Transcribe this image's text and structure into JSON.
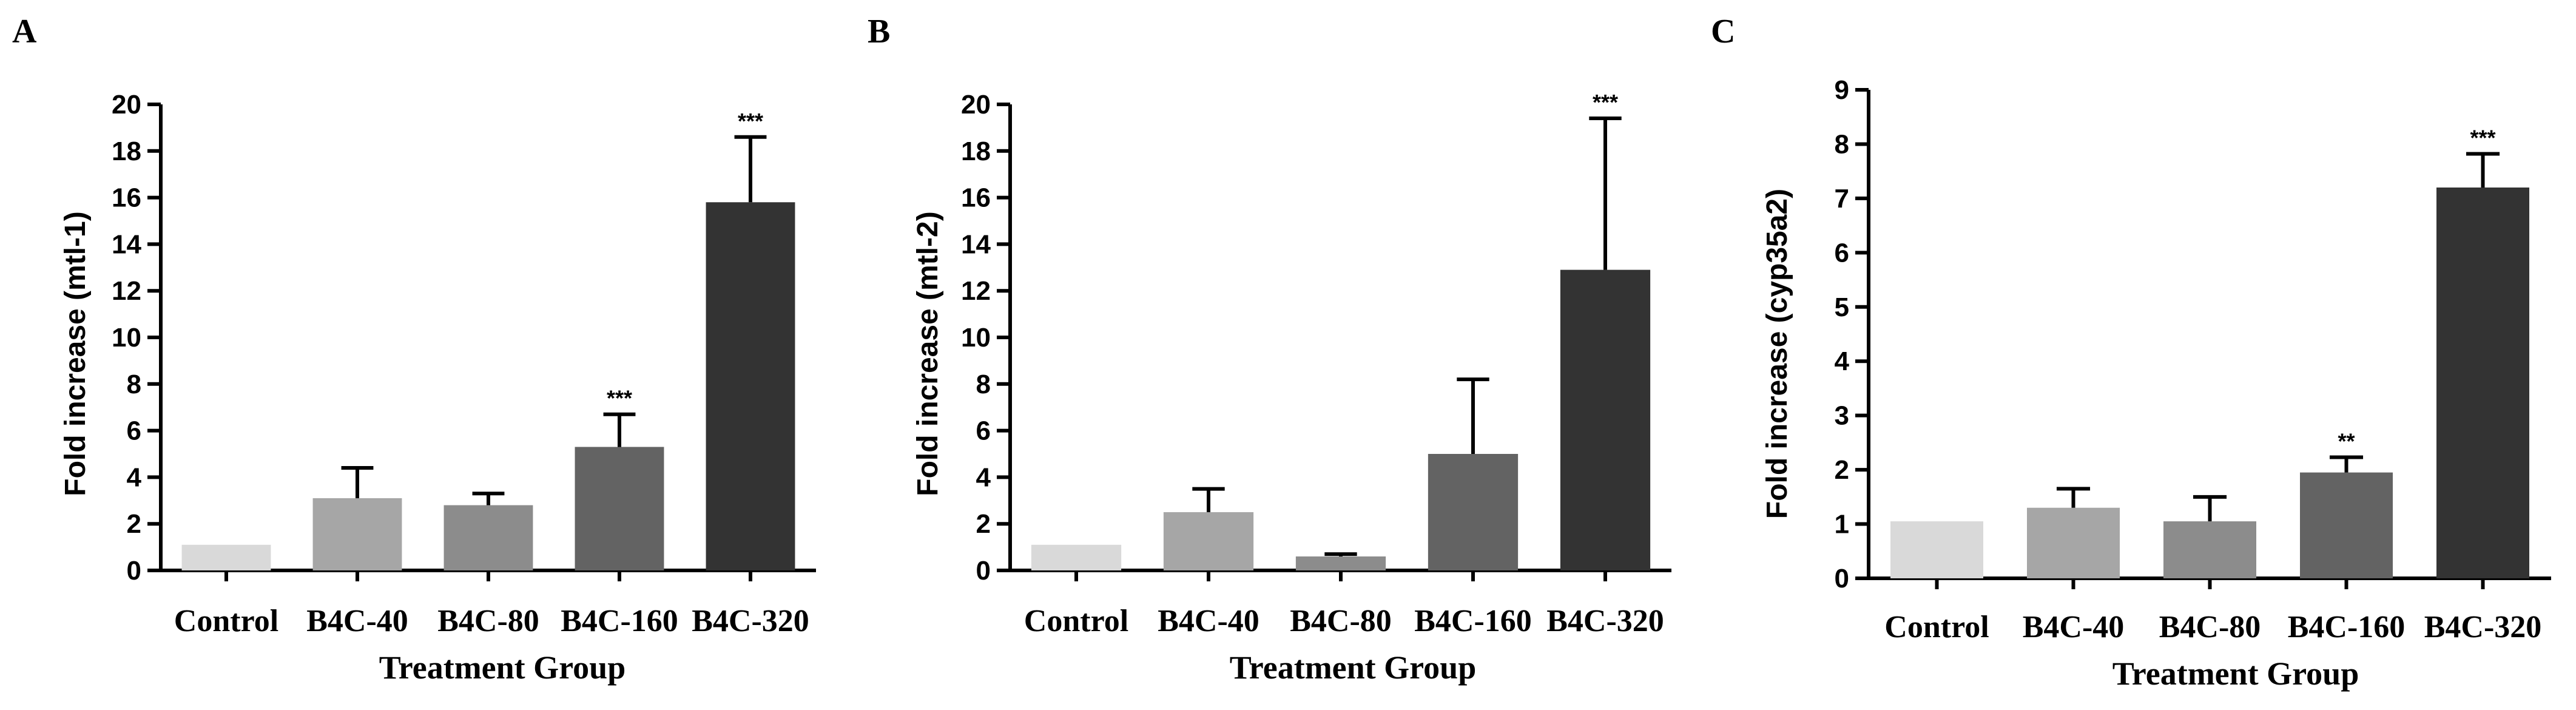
{
  "chart_data": [
    {
      "panel": "A",
      "type": "bar",
      "title": "",
      "xlabel": "Treatment Group",
      "ylabel": "Fold increase (mtl-1)",
      "categories": [
        "Control",
        "B4C-40",
        "B4C-80",
        "B4C-160",
        "B4C-320"
      ],
      "values": [
        1.1,
        3.1,
        2.8,
        5.3,
        15.8
      ],
      "errors": [
        0,
        1.3,
        0.5,
        1.4,
        2.8
      ],
      "significance": [
        "",
        "",
        "",
        "***",
        "***"
      ],
      "ylim": [
        0,
        20
      ],
      "yticks": [
        0,
        2,
        4,
        6,
        8,
        10,
        12,
        14,
        16,
        18,
        20
      ],
      "colors": [
        "#d9d9d9",
        "#a6a6a6",
        "#8c8c8c",
        "#636363",
        "#333333"
      ]
    },
    {
      "panel": "B",
      "type": "bar",
      "title": "",
      "xlabel": "Treatment Group",
      "ylabel": "Fold increase (mtl-2)",
      "categories": [
        "Control",
        "B4C-40",
        "B4C-80",
        "B4C-160",
        "B4C-320"
      ],
      "values": [
        1.1,
        2.5,
        0.6,
        5.0,
        12.9
      ],
      "errors": [
        0,
        1.0,
        0.1,
        3.2,
        6.5
      ],
      "significance": [
        "",
        "",
        "",
        "",
        "***"
      ],
      "ylim": [
        0,
        20
      ],
      "yticks": [
        0,
        2,
        4,
        6,
        8,
        10,
        12,
        14,
        16,
        18,
        20
      ],
      "colors": [
        "#d9d9d9",
        "#a6a6a6",
        "#8c8c8c",
        "#636363",
        "#333333"
      ]
    },
    {
      "panel": "C",
      "type": "bar",
      "title": "",
      "xlabel": "Treatment Group",
      "ylabel": "Fold increase (cyp35a2)",
      "categories": [
        "Control",
        "B4C-40",
        "B4C-80",
        "B4C-160",
        "B4C-320"
      ],
      "values": [
        1.05,
        1.3,
        1.05,
        1.95,
        7.2
      ],
      "errors": [
        0,
        0.35,
        0.45,
        0.28,
        0.62
      ],
      "significance": [
        "",
        "",
        "",
        "**",
        "***"
      ],
      "ylim": [
        0,
        9
      ],
      "yticks": [
        0,
        1,
        2,
        3,
        4,
        5,
        6,
        7,
        8,
        9
      ],
      "colors": [
        "#d9d9d9",
        "#a6a6a6",
        "#8c8c8c",
        "#636363",
        "#333333"
      ]
    }
  ]
}
